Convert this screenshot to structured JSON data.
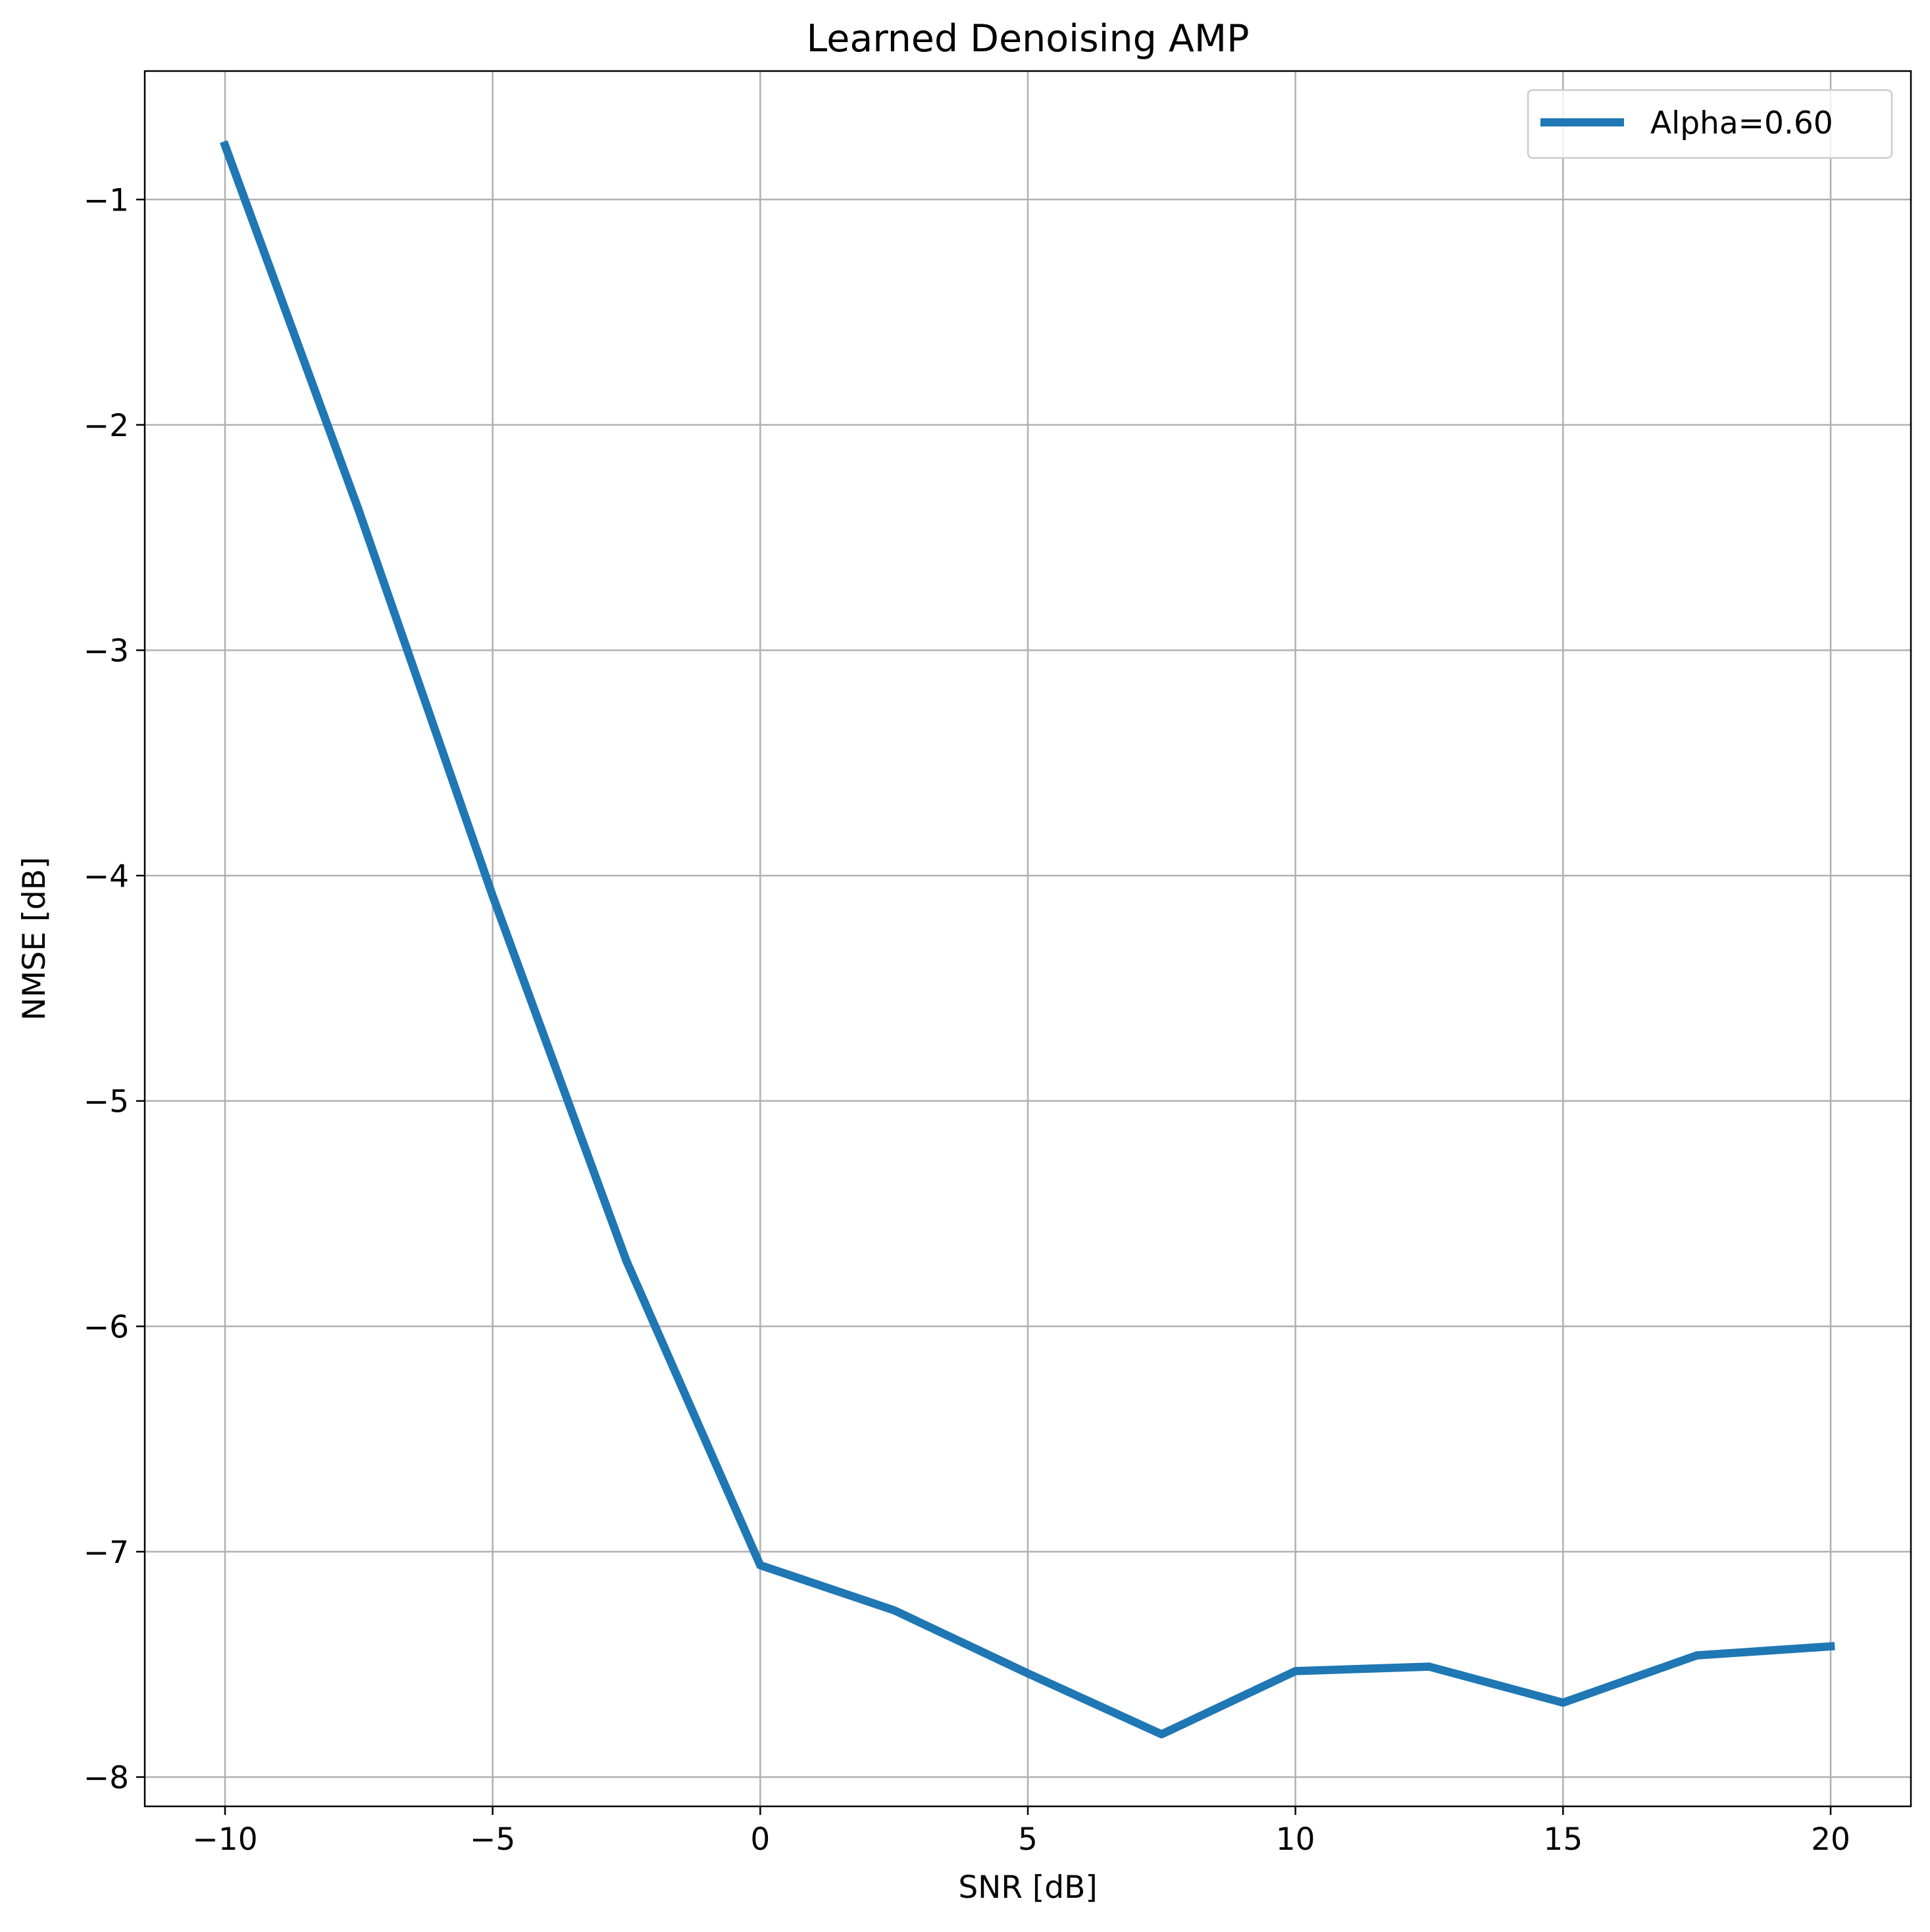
{
  "chart_data": {
    "type": "line",
    "title": "Learned Denoising AMP",
    "xlabel": "SNR [dB]",
    "ylabel": "NMSE [dB]",
    "xlim": [
      -11.5,
      21.5
    ],
    "ylim": [
      -8.13,
      -0.43
    ],
    "xticks": [
      -10,
      -5,
      0,
      5,
      10,
      15,
      20
    ],
    "xtick_labels": [
      "−10",
      "−5",
      "0",
      "5",
      "10",
      "15",
      "20"
    ],
    "yticks": [
      -1,
      -2,
      -3,
      -4,
      -5,
      -6,
      -7,
      -8
    ],
    "ytick_labels": [
      "−1",
      "−2",
      "−3",
      "−4",
      "−5",
      "−6",
      "−7",
      "−8"
    ],
    "grid": true,
    "legend": {
      "position": "upper right"
    },
    "series": [
      {
        "name": "Alpha=0.60",
        "color": "#1f77b4",
        "x": [
          -10,
          -7.5,
          -5,
          -2.5,
          0,
          2.5,
          5,
          7.5,
          10,
          12.5,
          15,
          17.5,
          20
        ],
        "y": [
          -0.76,
          -2.38,
          -4.09,
          -5.71,
          -7.06,
          -7.26,
          -7.54,
          -7.81,
          -7.53,
          -7.51,
          -7.67,
          -7.46,
          -7.42
        ]
      }
    ]
  }
}
